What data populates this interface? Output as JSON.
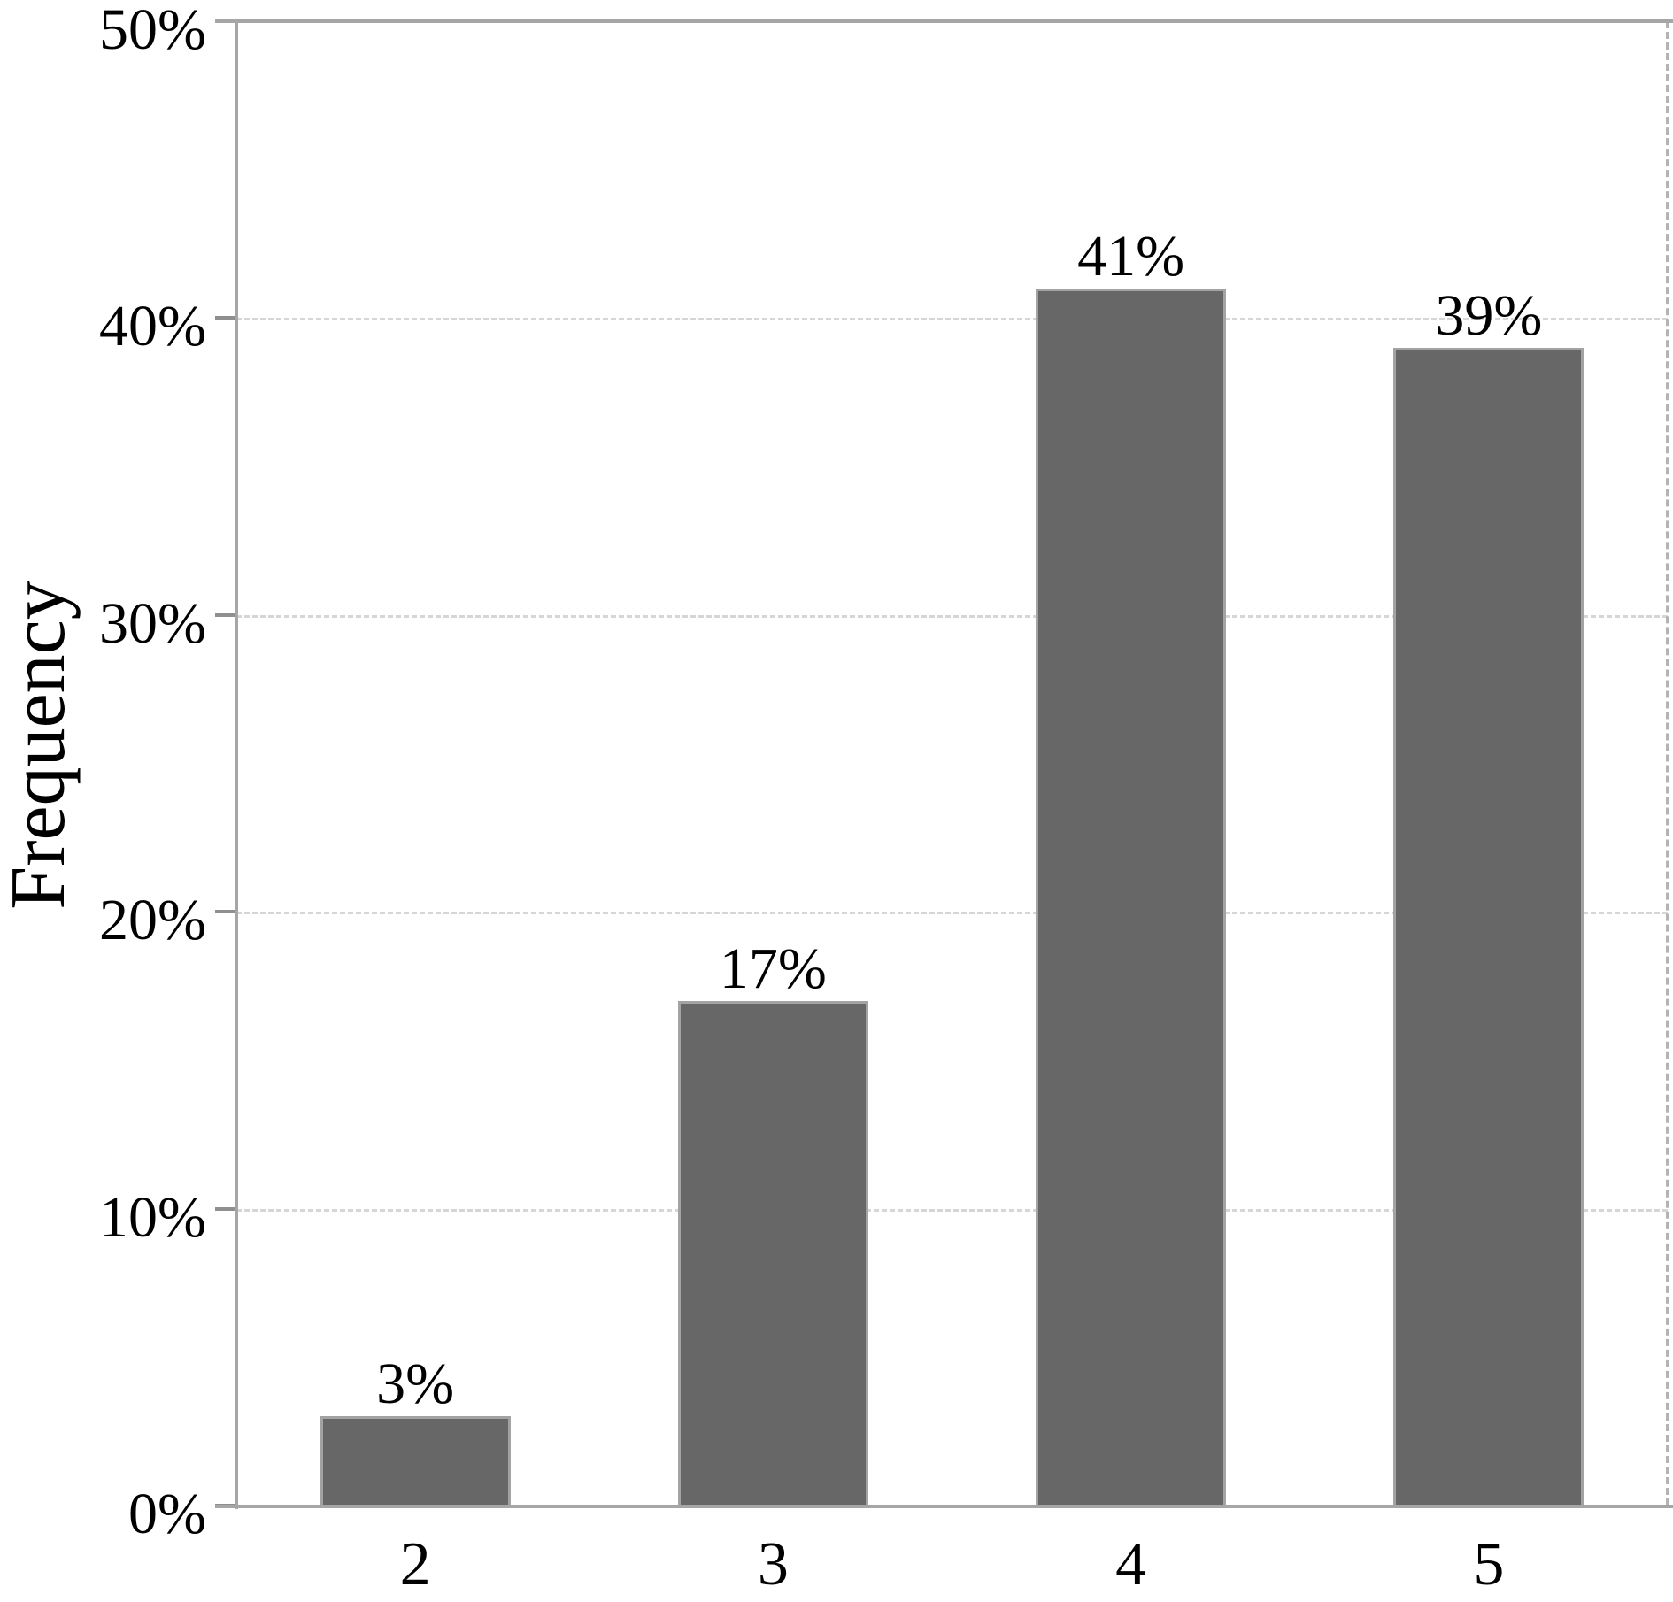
{
  "chart_data": {
    "type": "bar",
    "title": "",
    "xlabel": "",
    "ylabel": "Frequency",
    "categories": [
      "2",
      "3",
      "4",
      "5"
    ],
    "values": [
      3,
      17,
      41,
      39
    ],
    "bar_labels": [
      "3%",
      "17%",
      "41%",
      "39%"
    ],
    "ylim": [
      0,
      50
    ],
    "ytick_values": [
      0,
      10,
      20,
      30,
      40,
      50
    ],
    "ytick_labels": [
      "0%",
      "10%",
      "20%",
      "30%",
      "40%",
      "50%"
    ],
    "grid": "horizontal-dashed",
    "legend": "none",
    "colors": {
      "bar_fill": "#676767",
      "bar_border": "#a3a3a3",
      "axis": "#a6a6a6",
      "tick": "#8f8f8f",
      "gridline": "#d6d6d6",
      "text": "#000000",
      "background": "#ffffff"
    }
  }
}
